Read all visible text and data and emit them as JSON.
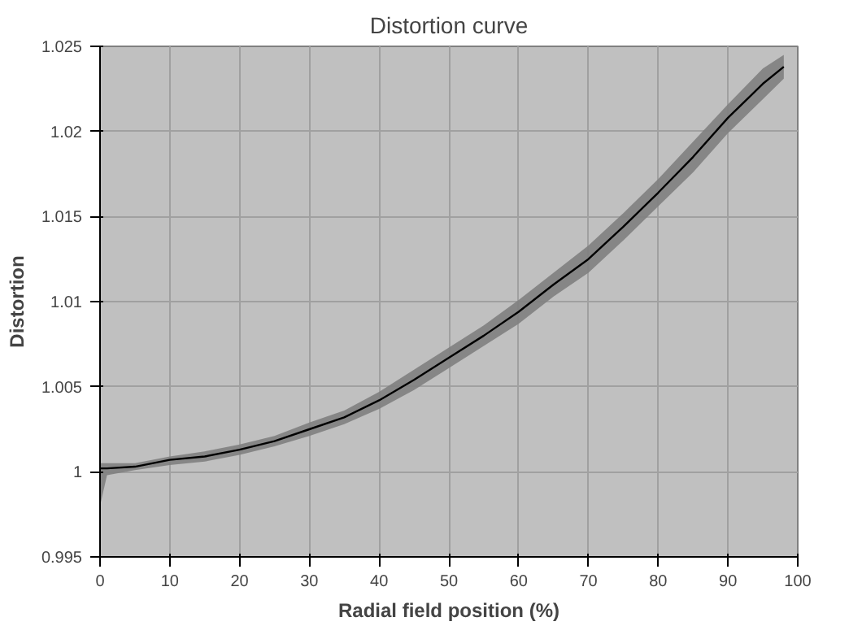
{
  "chart_data": {
    "type": "line",
    "title": "Distortion curve",
    "xlabel": "Radial field position (%)",
    "ylabel": "Distortion",
    "x": [
      0,
      1,
      5,
      10,
      15,
      20,
      25,
      30,
      35,
      40,
      45,
      50,
      55,
      60,
      65,
      70,
      75,
      80,
      85,
      90,
      95,
      98
    ],
    "series": [
      {
        "color": "#000000",
        "values": [
          1.0002,
          1.0002,
          1.0003,
          1.0007,
          1.0009,
          1.0013,
          1.0018,
          1.0025,
          1.0032,
          1.0042,
          1.0054,
          1.0067,
          1.008,
          1.0094,
          1.011,
          1.0125,
          1.0144,
          1.0164,
          1.0185,
          1.0208,
          1.0228,
          1.0238
        ],
        "lower": [
          0.998,
          0.9998,
          1.0001,
          1.0004,
          1.0006,
          1.001,
          1.0015,
          1.0021,
          1.0028,
          1.0037,
          1.0048,
          1.0061,
          1.0074,
          1.0087,
          1.0103,
          1.0117,
          1.0136,
          1.0156,
          1.0176,
          1.0199,
          1.0219,
          1.0231
        ],
        "upper": [
          1.0005,
          1.0005,
          1.0005,
          1.0009,
          1.0012,
          1.0016,
          1.0021,
          1.0029,
          1.0036,
          1.0047,
          1.006,
          1.0073,
          1.0086,
          1.0101,
          1.0117,
          1.0133,
          1.0152,
          1.0172,
          1.0194,
          1.0216,
          1.0237,
          1.0245
        ]
      }
    ],
    "xlim": [
      0,
      100
    ],
    "xticks": [
      0,
      10,
      20,
      30,
      40,
      50,
      60,
      70,
      80,
      90,
      100
    ],
    "ylim": [
      0.995,
      1.025
    ],
    "yticks": [
      0.995,
      1,
      1.005,
      1.01,
      1.015,
      1.02,
      1.025
    ],
    "grid": true,
    "marker": "none",
    "line_style": "solid"
  }
}
